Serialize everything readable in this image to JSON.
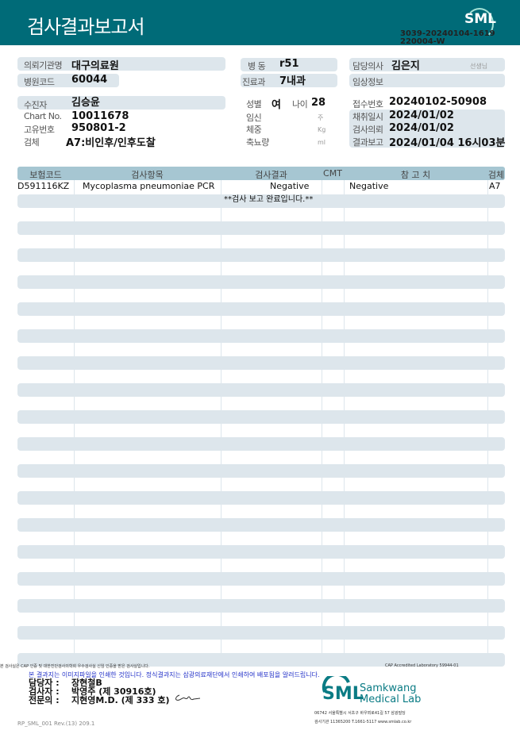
{
  "header": {
    "title": "검사결과보고서",
    "logo": "SML",
    "doc_number_line1": "3039-20240104-1619",
    "doc_number_line2": "220004-W"
  },
  "info": {
    "institution_label": "의뢰기관명",
    "institution": "대구의료원",
    "hospital_code_label": "병원코드",
    "hospital_code": "60044",
    "ward_label": "병 동",
    "ward": "r51",
    "department_label": "진료과",
    "department": "7내과",
    "doctor_label": "담당의사",
    "doctor": "김은지",
    "doctor_suffix": "선생님",
    "clinical_label": "임상정보",
    "patient_label": "수진자",
    "patient": "김승윤",
    "chart_label": "Chart No.",
    "chart": "10011678",
    "unique_label": "고유번호",
    "unique": "950801-2",
    "specimen_label": "검체",
    "specimen": "A7:비인후/인후도찰",
    "sex_label": "성별",
    "sex": "여",
    "age_label": "나이",
    "age": "28",
    "pregnancy_label": "임신",
    "pregnancy_unit": "주",
    "weight_label": "체중",
    "weight_unit": "Kg",
    "urine_label": "축뇨량",
    "urine_unit": "ml",
    "receipt_label": "접수번호",
    "receipt": "20240102-50908",
    "collect_label": "채취일시",
    "collect": "2024/01/02",
    "request_label": "검사의뢰",
    "request": "2024/01/02",
    "report_label": "결과보고",
    "report": "2024/01/04 16시03분"
  },
  "table": {
    "headers": [
      "보험코드",
      "검사항목",
      "검사결과",
      "CMT",
      "참 고 치",
      "검체"
    ],
    "rows": [
      {
        "code": "D591116KZ",
        "item": "Mycoplasma pneumoniae PCR",
        "result": "Negative",
        "cmt": "",
        "reference": "Negative",
        "specimen": "A7"
      }
    ],
    "note": "**검사  보고  완료입니다.**"
  },
  "footer": {
    "fine_left": "본 검사실은 CAP 인증 및 대한진단검사의학회 우수검사실 신임 인증을 받은 검사실입니다.",
    "fine_right": "CAP Accredited Laboratory 59944-01",
    "notice": "본 결과지는 이미지파일을 인쇄한 것입니다. 정식결과지는 삼광의료재단에서 인쇄하여 배포됨을 알려드립니다.",
    "staff": [
      {
        "role": "담당자 :",
        "name": "장현철B"
      },
      {
        "role": "검사자 :",
        "name": "박영주 (제 30916호)"
      },
      {
        "role": "전문의 :",
        "name": "지현영M.D. (제 333 호)"
      }
    ],
    "lab_logo": "SML",
    "lab_name1": "Samkwang",
    "lab_name2": "Medical Lab",
    "address": "06742 서울특별시 서초구 바우뫼로41길 57 삼광빌딩",
    "contact": "검사기관 11365200 T.1661-5117 www.smlab.co.kr",
    "form_code": "RP_SML_001 Rev.(13) 209.1"
  }
}
